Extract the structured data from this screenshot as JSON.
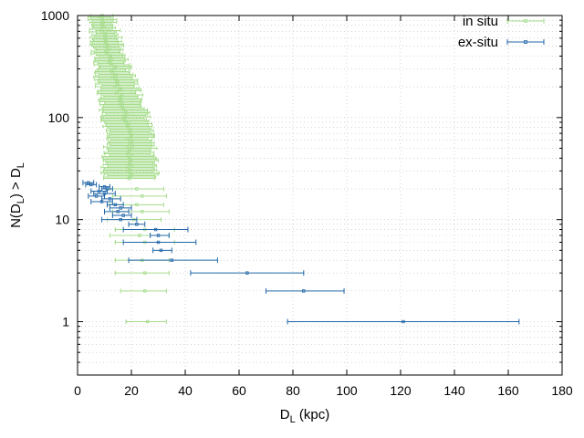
{
  "chart_data": {
    "type": "scatter",
    "xlabel": {
      "main": "D",
      "sub": "L",
      "tail": " (kpc)"
    },
    "ylabel": {
      "pre": "N(D",
      "sub1": "L",
      "mid": ") > D",
      "sub2": "L"
    },
    "xlim": [
      0,
      180
    ],
    "ylim": [
      0.3,
      1000
    ],
    "yscale": "log",
    "grid": true,
    "legend_position": "top-right",
    "x_ticks": [
      0,
      20,
      40,
      60,
      80,
      100,
      120,
      140,
      160,
      180
    ],
    "y_ticks": [
      1,
      10,
      100,
      1000
    ],
    "colors": {
      "in_situ": "#a6dc8c",
      "ex_situ": "#2166a8",
      "grid": "#bbbbbb"
    },
    "series": [
      {
        "name": "in situ",
        "style": "band",
        "band": [
          {
            "y": 1000,
            "lo": 5,
            "hi": 13
          },
          {
            "y": 700,
            "lo": 5.5,
            "hi": 14.5
          },
          {
            "y": 500,
            "lo": 6,
            "hi": 16
          },
          {
            "y": 300,
            "lo": 7,
            "hi": 19
          },
          {
            "y": 200,
            "lo": 8,
            "hi": 22
          },
          {
            "y": 150,
            "lo": 9,
            "hi": 24
          },
          {
            "y": 100,
            "lo": 10,
            "hi": 26
          },
          {
            "y": 70,
            "lo": 11,
            "hi": 27
          },
          {
            "y": 50,
            "lo": 11,
            "hi": 28
          },
          {
            "y": 35,
            "lo": 10,
            "hi": 29
          },
          {
            "y": 25,
            "lo": 10,
            "hi": 30
          }
        ],
        "points": [
          {
            "x": 22,
            "y": 20,
            "lo": 12,
            "hi": 32
          },
          {
            "x": 24,
            "y": 17,
            "lo": 13,
            "hi": 33
          },
          {
            "x": 22,
            "y": 14,
            "lo": 12,
            "hi": 32
          },
          {
            "x": 24,
            "y": 12,
            "lo": 13,
            "hi": 34
          },
          {
            "x": 21,
            "y": 10,
            "lo": 11,
            "hi": 31
          },
          {
            "x": 25,
            "y": 8,
            "lo": 14,
            "hi": 36
          },
          {
            "x": 23,
            "y": 7,
            "lo": 12,
            "hi": 34
          },
          {
            "x": 25,
            "y": 6,
            "lo": 14,
            "hi": 36
          },
          {
            "x": 24,
            "y": 4,
            "lo": 14,
            "hi": 34
          },
          {
            "x": 25,
            "y": 3,
            "lo": 14,
            "hi": 34
          },
          {
            "x": 25,
            "y": 2,
            "lo": 16,
            "hi": 33
          },
          {
            "x": 26,
            "y": 1,
            "lo": 18,
            "hi": 33
          }
        ]
      },
      {
        "name": "ex-situ",
        "style": "points",
        "points": [
          {
            "x": 4,
            "y": 23,
            "lo": 2,
            "hi": 6
          },
          {
            "x": 5,
            "y": 22,
            "lo": 3,
            "hi": 7
          },
          {
            "x": 10,
            "y": 21,
            "lo": 8,
            "hi": 12
          },
          {
            "x": 11,
            "y": 20,
            "lo": 9,
            "hi": 13
          },
          {
            "x": 8,
            "y": 19,
            "lo": 5,
            "hi": 11
          },
          {
            "x": 10,
            "y": 18,
            "lo": 6,
            "hi": 14
          },
          {
            "x": 7,
            "y": 17,
            "lo": 4,
            "hi": 10
          },
          {
            "x": 12,
            "y": 16,
            "lo": 9,
            "hi": 16
          },
          {
            "x": 9,
            "y": 15,
            "lo": 5,
            "hi": 13
          },
          {
            "x": 14,
            "y": 14,
            "lo": 11,
            "hi": 17
          },
          {
            "x": 16,
            "y": 13,
            "lo": 12,
            "hi": 20
          },
          {
            "x": 15,
            "y": 12,
            "lo": 10,
            "hi": 19
          },
          {
            "x": 17,
            "y": 11,
            "lo": 13,
            "hi": 20
          },
          {
            "x": 16,
            "y": 10,
            "lo": 9,
            "hi": 22
          },
          {
            "x": 22,
            "y": 9,
            "lo": 19,
            "hi": 25
          },
          {
            "x": 29,
            "y": 8,
            "lo": 17,
            "hi": 41
          },
          {
            "x": 30,
            "y": 7,
            "lo": 27,
            "hi": 34
          },
          {
            "x": 30,
            "y": 6,
            "lo": 17,
            "hi": 44
          },
          {
            "x": 31,
            "y": 5,
            "lo": 28,
            "hi": 35
          },
          {
            "x": 35,
            "y": 4,
            "lo": 19,
            "hi": 52
          },
          {
            "x": 63,
            "y": 3,
            "lo": 42,
            "hi": 84
          },
          {
            "x": 84,
            "y": 2,
            "lo": 70,
            "hi": 99
          },
          {
            "x": 121,
            "y": 1,
            "lo": 78,
            "hi": 164
          }
        ]
      }
    ]
  }
}
